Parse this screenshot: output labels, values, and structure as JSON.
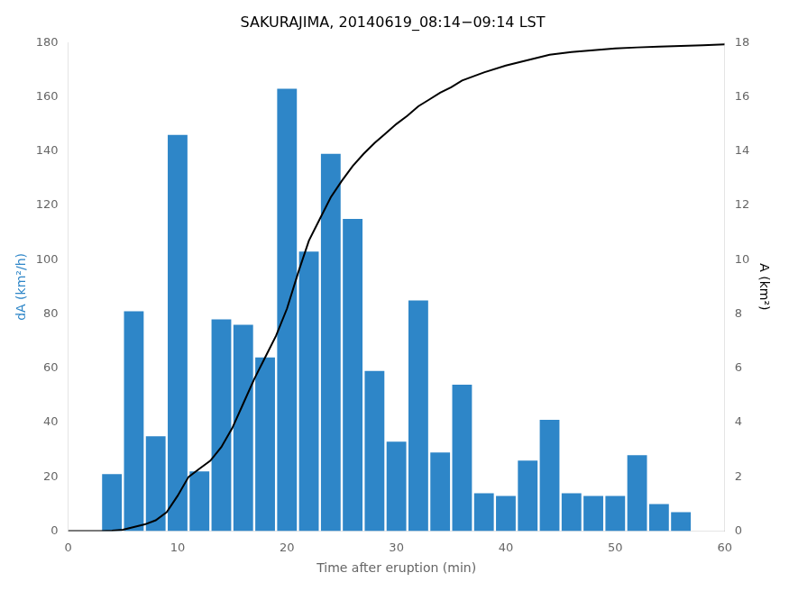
{
  "chart_data": {
    "type": "bar",
    "title": "SAKURAJIMA, 20140619_08:14−09:14 LST",
    "xlabel": "Time after eruption (min)",
    "ylabel": "dA (km²/h)",
    "y2label": "A (km²)",
    "series": [
      {
        "type": "bar",
        "color": "#2E86C8",
        "x": [
          4,
          6,
          8,
          10,
          12,
          14,
          16,
          18,
          20,
          22,
          24,
          26,
          28,
          30,
          32,
          34,
          36,
          38,
          40,
          42,
          44,
          46,
          48,
          50,
          52,
          54,
          56,
          58
        ],
        "values": [
          21,
          81,
          35,
          146,
          22,
          78,
          76,
          64,
          163,
          103,
          139,
          115,
          59,
          33,
          85,
          29,
          54,
          14,
          13,
          26,
          41,
          14,
          13,
          13,
          28,
          10,
          7,
          0
        ]
      },
      {
        "type": "line",
        "axis": "y2",
        "color": "#000000",
        "x": [
          0,
          3,
          4,
          5,
          6,
          7,
          8,
          9,
          10,
          11,
          12,
          13,
          14,
          15,
          16,
          17,
          18,
          19,
          20,
          21,
          22,
          23,
          24,
          25,
          26,
          27,
          28,
          29,
          30,
          31,
          32,
          33,
          34,
          35,
          36,
          37,
          38,
          40,
          42,
          44,
          46,
          48,
          50,
          52,
          54,
          56,
          58,
          60
        ],
        "values": [
          0,
          0,
          0.02,
          0.05,
          0.15,
          0.25,
          0.4,
          0.7,
          1.3,
          2.0,
          2.3,
          2.6,
          3.1,
          3.8,
          4.7,
          5.6,
          6.4,
          7.2,
          8.2,
          9.5,
          10.7,
          11.5,
          12.3,
          12.9,
          13.45,
          13.9,
          14.3,
          14.65,
          15.0,
          15.3,
          15.65,
          15.9,
          16.15,
          16.35,
          16.6,
          16.75,
          16.9,
          17.15,
          17.35,
          17.55,
          17.65,
          17.72,
          17.78,
          17.82,
          17.85,
          17.87,
          17.9,
          17.93
        ]
      }
    ],
    "xlim": [
      0,
      60
    ],
    "xticks": [
      0,
      10,
      20,
      30,
      40,
      50,
      60
    ],
    "ylim": [
      0,
      180
    ],
    "yticks": [
      0,
      20,
      40,
      60,
      80,
      100,
      120,
      140,
      160,
      180
    ],
    "y2lim": [
      0,
      18
    ],
    "y2ticks": [
      0,
      2,
      4,
      6,
      8,
      10,
      12,
      14,
      16,
      18
    ],
    "grid": false
  }
}
